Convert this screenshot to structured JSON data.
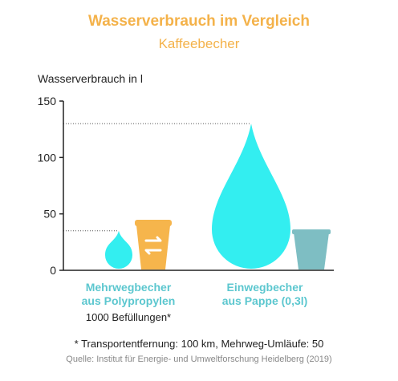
{
  "chart_data": {
    "type": "bar",
    "title": "Wasserverbrauch im Vergleich",
    "subtitle": "Kaffeebecher",
    "ylabel": "Wasserverbrauch in l",
    "ylim": [
      0,
      150
    ],
    "yticks": [
      "0",
      "50",
      "100",
      "150"
    ],
    "categories": [
      {
        "line1": "Mehrwegbecher",
        "line2": "aus Polypropylen",
        "note": "1000 Befüllungen*",
        "value": 35
      },
      {
        "line1": "Einwegbecher",
        "line2": "aus Pappe (0,3l)",
        "note": "",
        "value": 130
      }
    ],
    "reference_lines": [
      35,
      130
    ],
    "colors": {
      "drop": "#33eef0",
      "reusable_cup": "#f6b54c",
      "disposable_cup": "#7ebec3",
      "title": "#f4b24a",
      "category_label": "#5cc7cf"
    },
    "icons": [
      "water-drop-icon",
      "reusable-cup-icon",
      "disposable-cup-icon",
      "swap-arrows-icon"
    ]
  },
  "footnote": "* Transportentfernung: 100 km, Mehrweg-Umläufe: 50",
  "source": "Quelle: Institut für Energie- und Umweltforschung Heidelberg (2019)"
}
